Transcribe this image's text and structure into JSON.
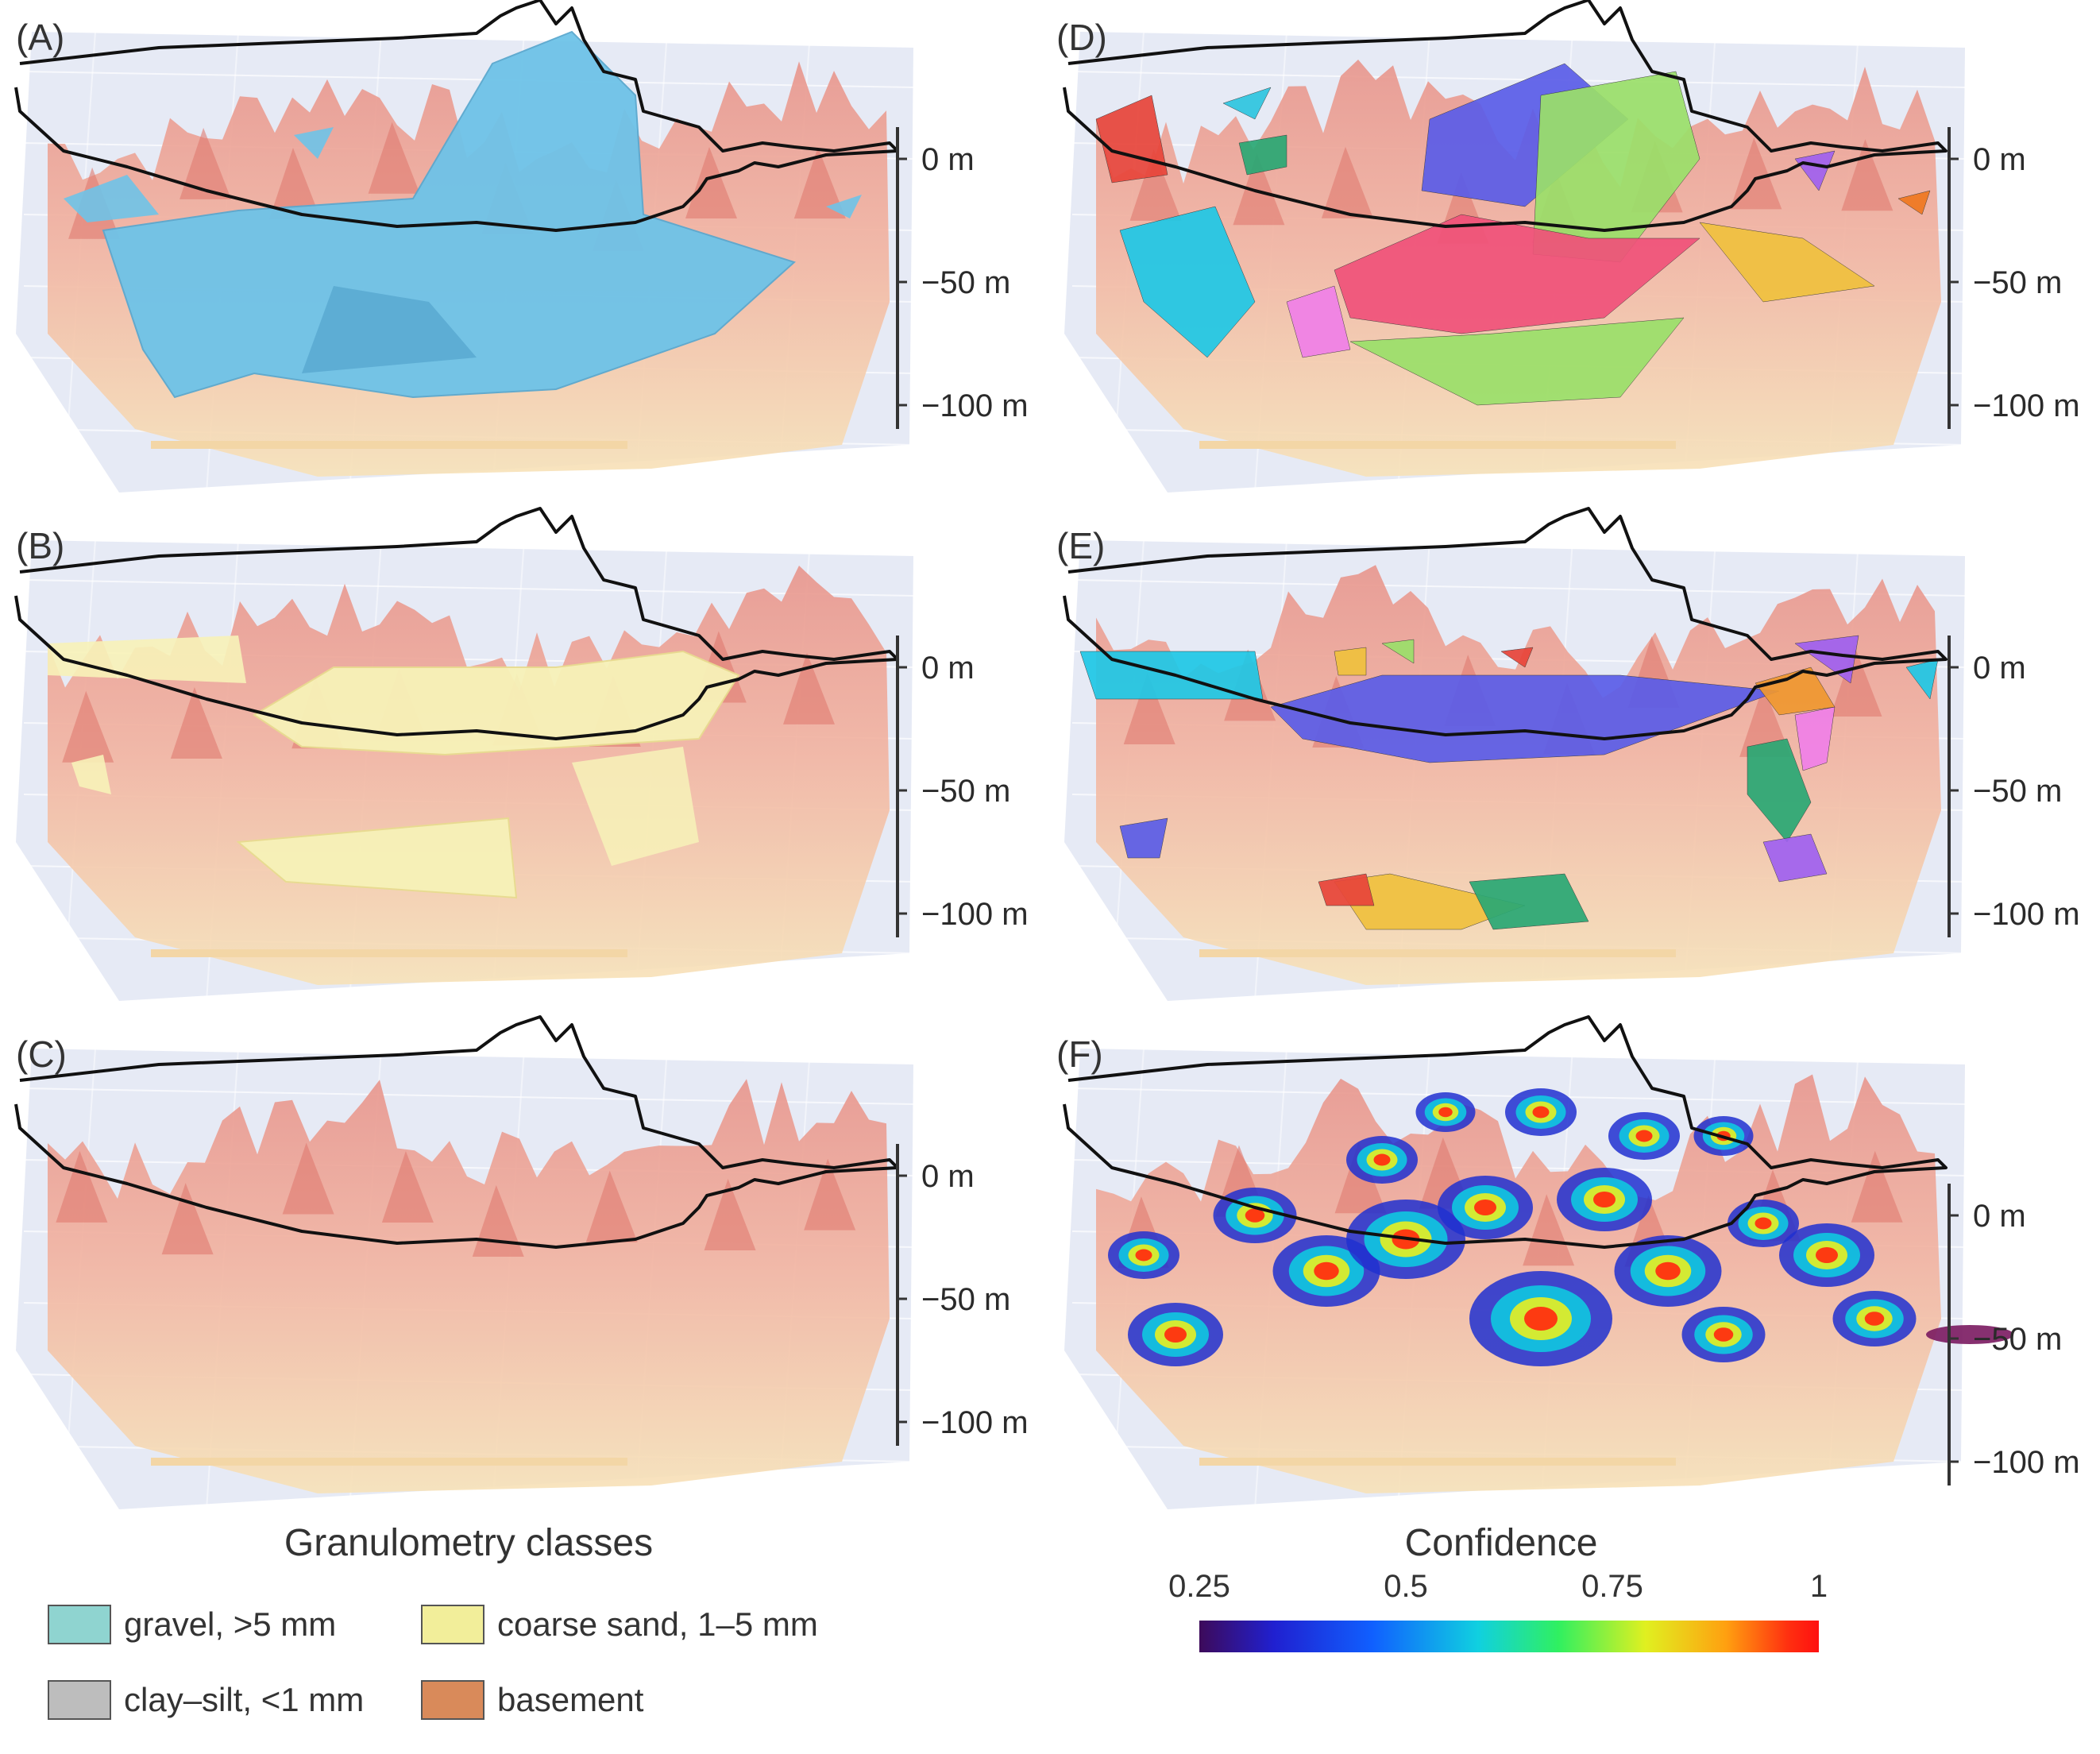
{
  "panels": [
    {
      "label": "(A)",
      "ticks": [
        "0 m",
        "−50 m",
        "−100 m"
      ],
      "kind": "gravel"
    },
    {
      "label": "(B)",
      "ticks": [
        "0 m",
        "−50 m",
        "−100 m"
      ],
      "kind": "sand"
    },
    {
      "label": "(C)",
      "ticks": [
        "0 m",
        "−50 m",
        "−100 m"
      ],
      "kind": "basement"
    },
    {
      "label": "(D)",
      "ticks": [
        "0 m",
        "−50 m",
        "−100 m"
      ],
      "kind": "clusters"
    },
    {
      "label": "(E)",
      "ticks": [
        "0 m",
        "−50 m",
        "−100 m"
      ],
      "kind": "clusters2"
    },
    {
      "label": "(F)",
      "ticks": [
        "0 m",
        "−50 m",
        "−100 m"
      ],
      "kind": "confidence"
    }
  ],
  "legend": {
    "title": "Granulometry classes",
    "items": [
      {
        "label": "gravel, >5 mm",
        "color": "#8fd4d0"
      },
      {
        "label": "coarse sand, 1–5 mm",
        "color": "#f2ee9a"
      },
      {
        "label": "clay–silt, <1 mm",
        "color": "#bdbdbd"
      },
      {
        "label": "basement",
        "color": "#d98a5a"
      }
    ]
  },
  "colorbar": {
    "title": "Confidence",
    "ticks": [
      "0.25",
      "0.5",
      "0.75",
      "1"
    ],
    "range": [
      0.25,
      1
    ]
  },
  "colors": {
    "gravel_body": "#6ec3e8",
    "sand_body": "#f7f2b8",
    "terrain_top": "#f0a49a",
    "terrain_bottom": "#f7e2b8",
    "box_bg": "#e3e8f4"
  }
}
